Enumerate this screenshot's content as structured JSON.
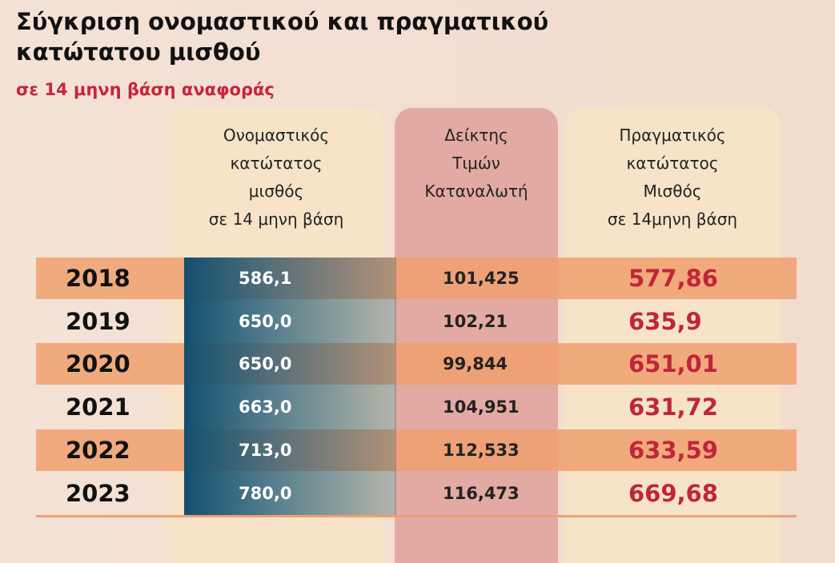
{
  "header": {
    "title": [
      "Σύγκριση ονομαστικού και πραγματικού",
      "κατώτατου μισθού"
    ],
    "subtitle": "σε 14 μηνη βάση αναφοράς"
  },
  "table": {
    "columns": [
      [
        "Ονομαστικός",
        "κατώτατος",
        "μισθός",
        "σε 14 μηνη βάση"
      ],
      [
        "Δείκτης",
        "Τιμών",
        "Καταναλωτή"
      ],
      [
        "Πραγματικός",
        "κατώτατος",
        "Μισθός",
        "σε 14μηνη βάση"
      ]
    ],
    "rows": [
      [
        "2018",
        "586,1",
        "101,425",
        "577,86"
      ],
      [
        "2019",
        "650,0",
        "102,21",
        "635,9"
      ],
      [
        "2020",
        "650,0",
        "99,844",
        "651,01"
      ],
      [
        "2021",
        "663,0",
        "104,951",
        "631,72"
      ],
      [
        "2022",
        "713,0",
        "112,533",
        "633,59"
      ],
      [
        "2023",
        "780,0",
        "116,473",
        "669,68"
      ]
    ]
  }
}
